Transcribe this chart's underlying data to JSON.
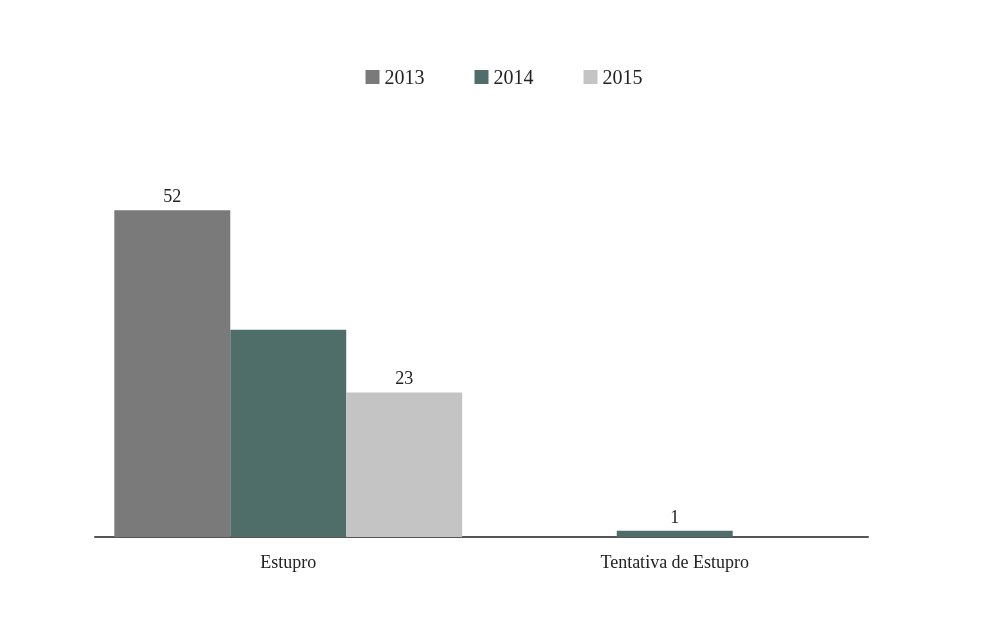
{
  "chart_data": {
    "type": "bar",
    "categories": [
      "Estupro",
      "Tentativa de Estupro"
    ],
    "series": [
      {
        "name": "2013",
        "color": "#7a7a7a",
        "values": [
          52,
          null
        ],
        "value_labels": [
          "52",
          null
        ]
      },
      {
        "name": "2014",
        "color": "#4f6e6a",
        "values": [
          33,
          1
        ],
        "value_labels": [
          null,
          "1"
        ]
      },
      {
        "name": "2015",
        "color": "#c4c4c4",
        "values": [
          23,
          null
        ],
        "value_labels": [
          "23",
          null
        ]
      }
    ],
    "legend": "top",
    "grid": false
  }
}
